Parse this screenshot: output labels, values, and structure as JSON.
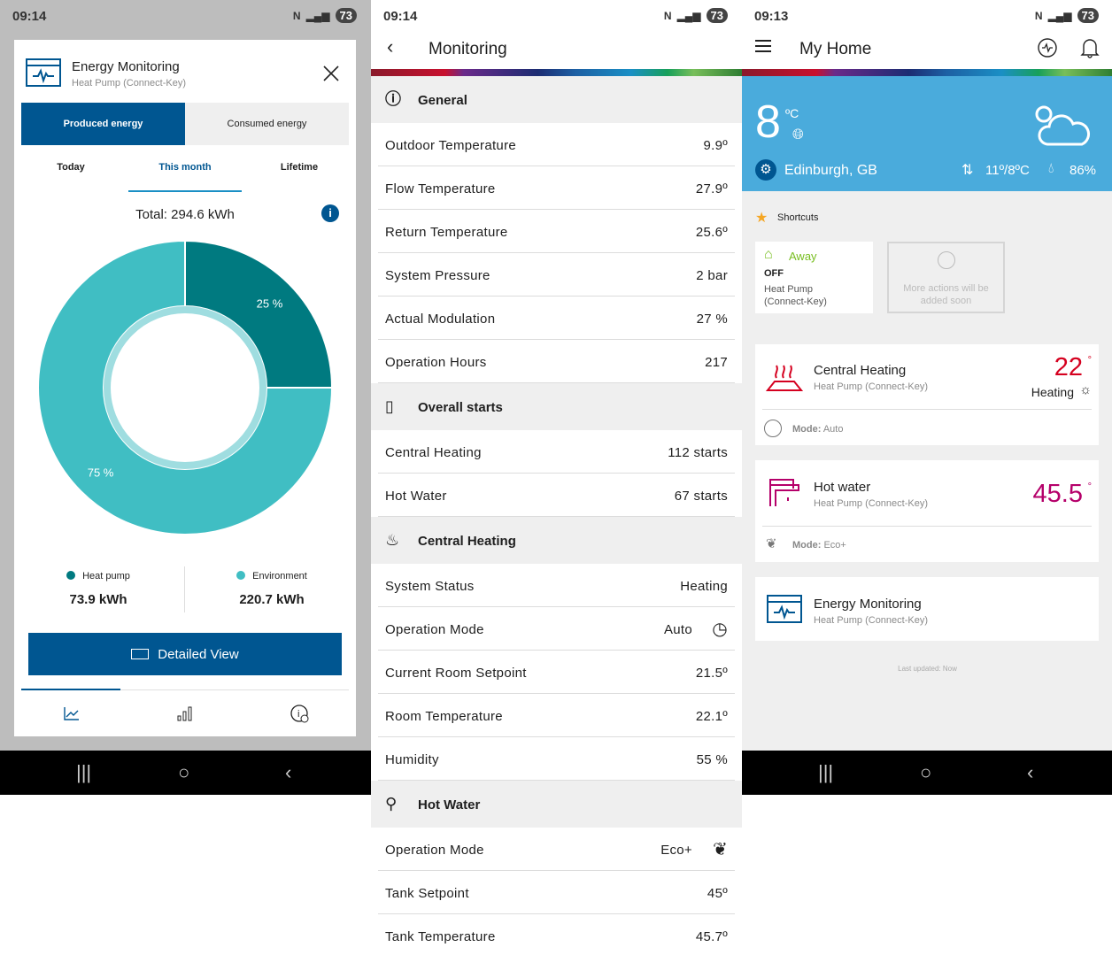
{
  "colors": {
    "brand_blue": "#005691",
    "teal_dark": "#007a80",
    "teal_light": "#40bec3",
    "weather_blue": "#4aabdc",
    "heating_red": "#d5001f",
    "hotwater_magenta": "#b5006a",
    "away_green": "#78be20"
  },
  "energy": {
    "status": {
      "time": "09:14",
      "battery": "73"
    },
    "title": "Energy Monitoring",
    "subtitle": "Heat Pump (Connect-Key)",
    "segments": [
      "Produced energy",
      "Consumed energy"
    ],
    "segment_selected": 0,
    "periods": [
      "Today",
      "This month",
      "Lifetime"
    ],
    "period_selected": 1,
    "total": "Total: 294.6 kWh",
    "chart_data": {
      "type": "pie",
      "categories": [
        "Heat pump",
        "Environment"
      ],
      "values": [
        25,
        75
      ],
      "labels": [
        "25 %",
        "75 %"
      ]
    },
    "legend": [
      {
        "name": "Heat pump",
        "value": "73.9 kWh"
      },
      {
        "name": "Environment",
        "value": "220.7 kWh"
      }
    ],
    "detailed_view": "Detailed View",
    "bottom_tabs": [
      "line-chart-icon",
      "bar-chart-icon",
      "info-settings-icon"
    ]
  },
  "monitoring": {
    "status": {
      "time": "09:14",
      "battery": "73"
    },
    "title": "Monitoring",
    "sections": [
      {
        "title": "General",
        "icon": "info-icon",
        "rows": [
          [
            "Outdoor Temperature",
            "9.9º"
          ],
          [
            "Flow Temperature",
            "27.9º"
          ],
          [
            "Return Temperature",
            "25.6º"
          ],
          [
            "System Pressure",
            "2 bar"
          ],
          [
            "Actual Modulation",
            "27 %"
          ],
          [
            "Operation Hours",
            "217"
          ]
        ]
      },
      {
        "title": "Overall starts",
        "icon": "device-icon",
        "rows": [
          [
            "Central Heating",
            "112 starts"
          ],
          [
            "Hot Water",
            "67 starts"
          ]
        ]
      },
      {
        "title": "Central Heating",
        "icon": "heating-icon",
        "rows": [
          [
            "System Status",
            "Heating"
          ],
          [
            "Operation Mode",
            "Auto"
          ],
          [
            "Current Room Setpoint",
            "21.5º"
          ],
          [
            "Room Temperature",
            "22.1º"
          ],
          [
            "Humidity",
            "55 %"
          ]
        ]
      },
      {
        "title": "Hot Water",
        "icon": "tap-icon",
        "rows": [
          [
            "Operation Mode",
            "Eco+"
          ],
          [
            "Tank Setpoint",
            "45º"
          ],
          [
            "Tank Temperature",
            "45.7º"
          ]
        ]
      }
    ]
  },
  "home": {
    "status": {
      "time": "09:13",
      "battery": "73"
    },
    "title": "My Home",
    "weather": {
      "temp": "8",
      "unit": "ºC",
      "location": "Edinburgh, GB",
      "range": "11º/8ºC",
      "humidity": "86%"
    },
    "shortcuts_label": "Shortcuts",
    "away": {
      "label": "Away",
      "state": "OFF",
      "device": "Heat Pump (Connect-Key)"
    },
    "more_actions": "More actions will be added soon",
    "central_heating": {
      "title": "Central Heating",
      "subtitle": "Heat Pump (Connect-Key)",
      "temp": "22",
      "deg": "°",
      "status": "Heating",
      "mode_label": "Mode:",
      "mode": "Auto"
    },
    "hot_water": {
      "title": "Hot water",
      "subtitle": "Heat Pump (Connect-Key)",
      "temp": "45.5",
      "deg": "°",
      "mode_label": "Mode:",
      "mode": "Eco+"
    },
    "energy": {
      "title": "Energy Monitoring",
      "subtitle": "Heat Pump (Connect-Key)"
    },
    "last_updated": "Last updated: Now"
  }
}
